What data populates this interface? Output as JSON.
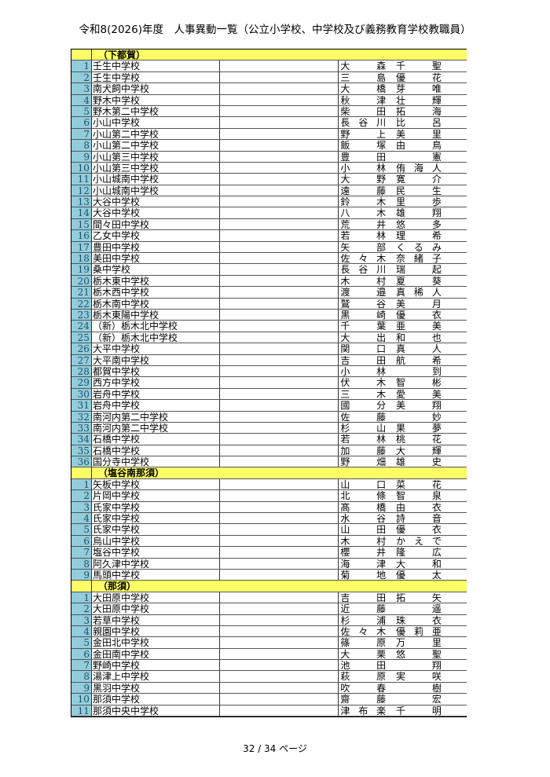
{
  "title": "令和8(2026)年度　人事異動一覧（公立小学校、中学校及び義務教育学校教職員）",
  "sections": [
    {
      "name": "（下都賀）",
      "rows": [
        [
          "1",
          "壬生中学校",
          "大森",
          "千聖"
        ],
        [
          "2",
          "壬生中学校",
          "三島",
          "優花"
        ],
        [
          "3",
          "南犬飼中学校",
          "大橋",
          "芽唯"
        ],
        [
          "4",
          "野木中学校",
          "秋津",
          "壮輝"
        ],
        [
          "5",
          "野木第二中学校",
          "柴田",
          "拓海"
        ],
        [
          "6",
          "小山中学校",
          "長谷川",
          "比呂"
        ],
        [
          "7",
          "小山第二中学校",
          "野上",
          "美里"
        ],
        [
          "8",
          "小山第二中学校",
          "飯塚",
          "由鳥"
        ],
        [
          "9",
          "小山第三中学校",
          "豊田",
          "憲"
        ],
        [
          "10",
          "小山第三中学校",
          "小林",
          "侑海人"
        ],
        [
          "11",
          "小山城南中学校",
          "大野",
          "寛介"
        ],
        [
          "12",
          "小山城南中学校",
          "遠藤",
          "民生"
        ],
        [
          "13",
          "大谷中学校",
          "鈴木",
          "里歩"
        ],
        [
          "14",
          "大谷中学校",
          "八木",
          "雄翔"
        ],
        [
          "15",
          "間々田中学校",
          "荒井",
          "悠多"
        ],
        [
          "16",
          "乙女中学校",
          "若林",
          "理希"
        ],
        [
          "17",
          "豊田中学校",
          "矢部",
          "くるみ"
        ],
        [
          "18",
          "美田中学校",
          "佐々木",
          "奈緒子"
        ],
        [
          "19",
          "桑中学校",
          "長谷川",
          "瑞起"
        ],
        [
          "20",
          "栃木東中学校",
          "木村",
          "夏葵"
        ],
        [
          "21",
          "栃木西中学校",
          "渡邉",
          "真稀人"
        ],
        [
          "22",
          "栃木南中学校",
          "鷲谷",
          "美月"
        ],
        [
          "23",
          "栃木東陽中学校",
          "黒崎",
          "優衣"
        ],
        [
          "24",
          "（新）栃木北中学校",
          "千葉",
          "亜美"
        ],
        [
          "25",
          "（新）栃木北中学校",
          "大出",
          "和也"
        ],
        [
          "26",
          "大平中学校",
          "関口",
          "真人"
        ],
        [
          "27",
          "大平南中学校",
          "吉田",
          "航希"
        ],
        [
          "28",
          "都賀中学校",
          "小林",
          "到"
        ],
        [
          "29",
          "西方中学校",
          "伏木",
          "智彬"
        ],
        [
          "30",
          "岩舟中学校",
          "三木",
          "愛美"
        ],
        [
          "31",
          "岩舟中学校",
          "國分",
          "美翔"
        ],
        [
          "32",
          "南河内第二中学校",
          "佐藤",
          "妙"
        ],
        [
          "33",
          "南河内第二中学校",
          "杉山",
          "果夢"
        ],
        [
          "34",
          "石橋中学校",
          "若林",
          "桃花"
        ],
        [
          "35",
          "石橋中学校",
          "加藤",
          "大輝"
        ],
        [
          "36",
          "国分寺中学校",
          "野畑",
          "雄史"
        ]
      ]
    },
    {
      "name": "（塩谷南那須）",
      "rows": [
        [
          "1",
          "矢板中学校",
          "山口",
          "菜花"
        ],
        [
          "2",
          "片岡中学校",
          "北條",
          "智泉"
        ],
        [
          "3",
          "氏家中学校",
          "髙橋",
          "由衣"
        ],
        [
          "4",
          "氏家中学校",
          "水谷",
          "詩音"
        ],
        [
          "5",
          "氏家中学校",
          "山田",
          "優衣"
        ],
        [
          "6",
          "烏山中学校",
          "木村",
          "かえで"
        ],
        [
          "7",
          "塩谷中学校",
          "櫻井",
          "隆広"
        ],
        [
          "8",
          "阿久津中学校",
          "海津",
          "大和"
        ],
        [
          "9",
          "馬頭中学校",
          "菊地",
          "優太"
        ]
      ]
    },
    {
      "name": "（那須）",
      "rows": [
        [
          "1",
          "大田原中学校",
          "吉田",
          "拓矢"
        ],
        [
          "2",
          "大田原中学校",
          "近藤",
          "遥"
        ],
        [
          "3",
          "若草中学校",
          "杉浦",
          "珠衣"
        ],
        [
          "4",
          "親園中学校",
          "佐々木",
          "優莉亜"
        ],
        [
          "5",
          "金田北中学校",
          "篠原",
          "万里"
        ],
        [
          "6",
          "金田南中学校",
          "大栗",
          "悠聖"
        ],
        [
          "7",
          "野崎中学校",
          "池田",
          "翔"
        ],
        [
          "8",
          "湯津上中学校",
          "萩原",
          "実咲"
        ],
        [
          "9",
          "黒羽中学校",
          "吹春",
          "樹"
        ],
        [
          "10",
          "那須中学校",
          "齋藤",
          "宏"
        ],
        [
          "11",
          "那須中央中学校",
          "津布楽",
          "千明"
        ]
      ]
    }
  ],
  "footer": "32 / 34 ページ"
}
